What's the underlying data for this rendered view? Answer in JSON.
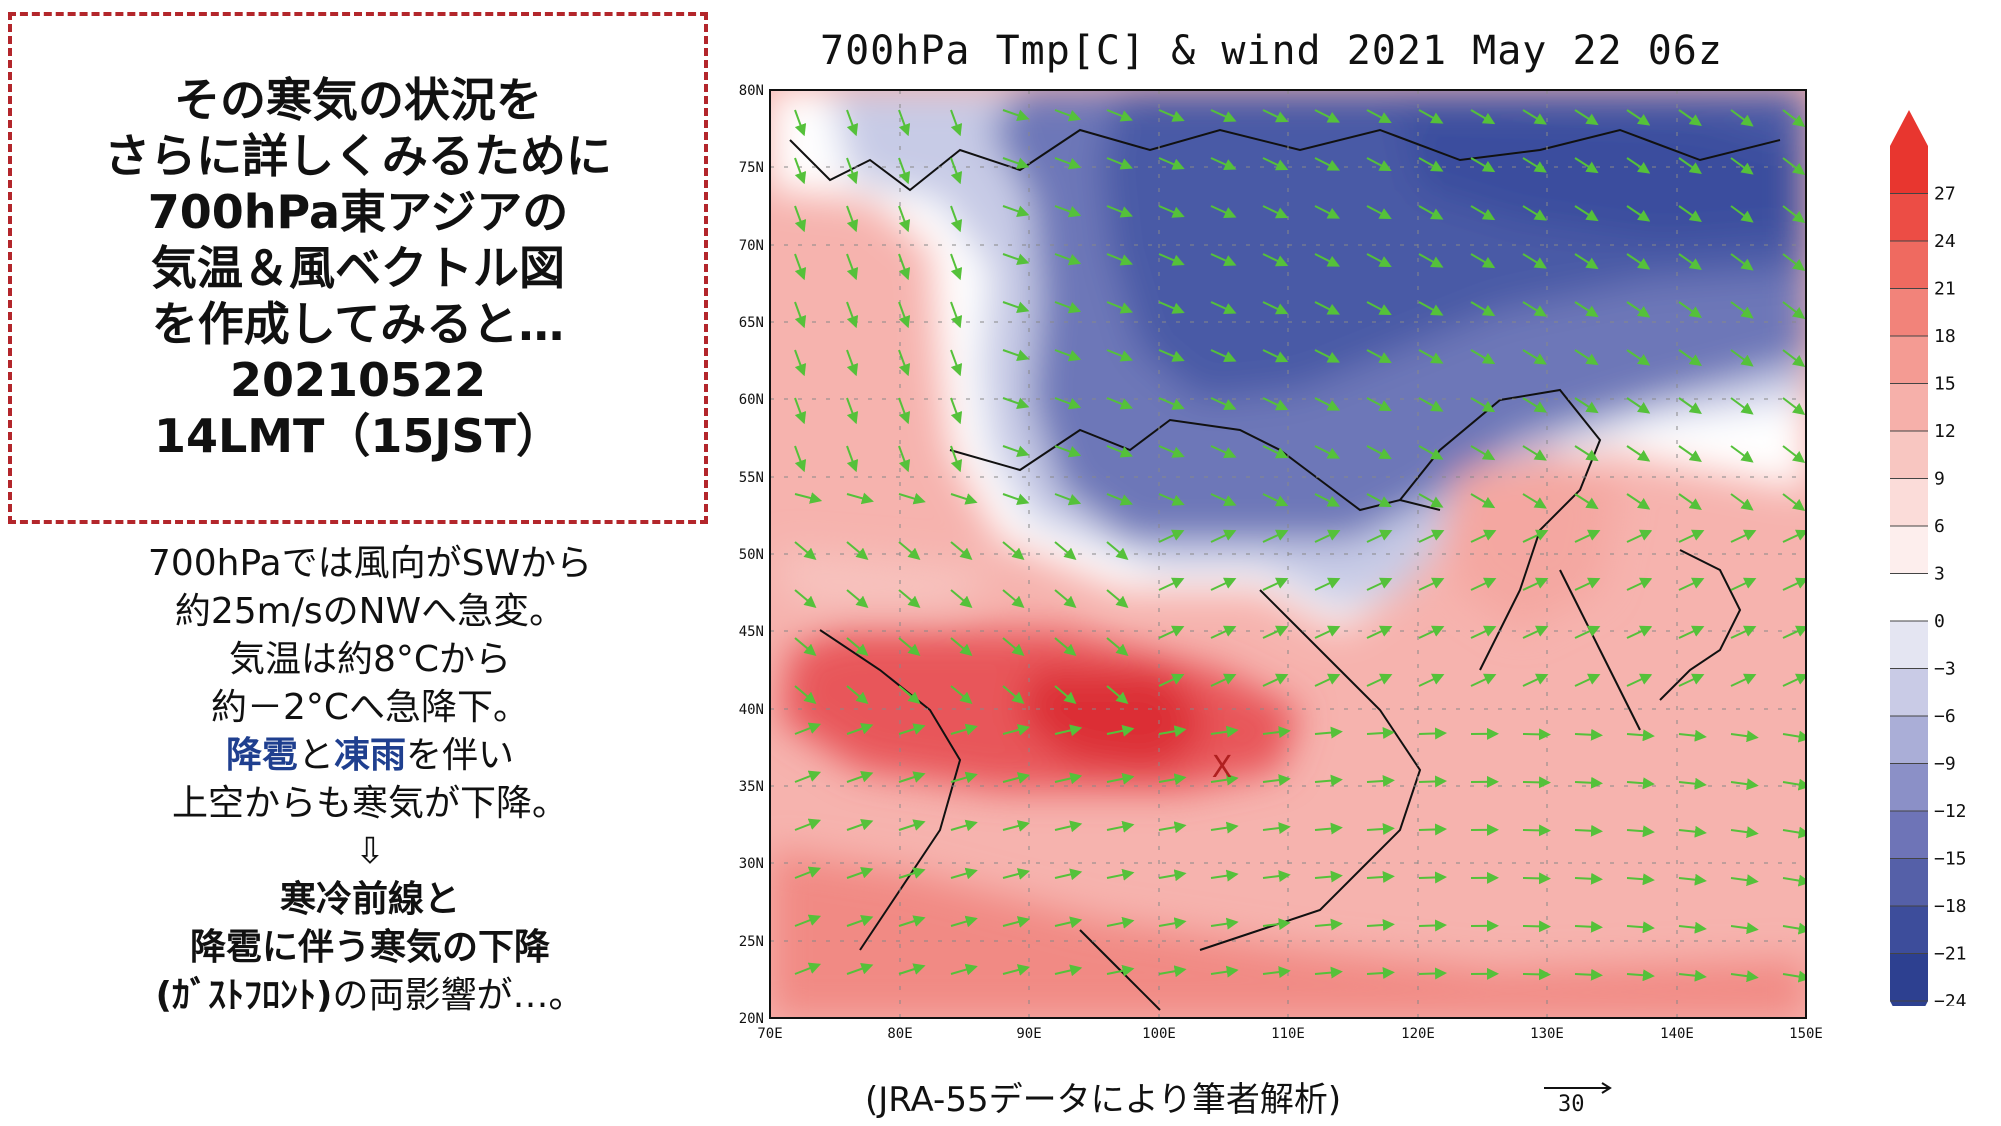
{
  "callout": {
    "lines": [
      "その寒気の状況を",
      "さらに詳しくみるために",
      "700hPa東アジアの",
      "気温＆風ベクトル図",
      "を作成してみると…",
      "20210522",
      "14LMT（15JST）"
    ]
  },
  "notes": {
    "line1": "700hPaでは風向がSWから",
    "line2": "約25m/sのNWへ急変。",
    "line3": "気温は約8°Cから",
    "line4": "約－2°Cへ急降下。",
    "line5_a": "降雹",
    "line5_b": "と",
    "line5_c": "凍雨",
    "line5_d": "を伴い",
    "line6": "上空からも寒気が下降。",
    "arrow": "⇩",
    "line7": "寒冷前線と",
    "line8": "降雹に伴う寒気の下降",
    "line9_a": "(ｶﾞｽﾄﾌﾛﾝﾄ)",
    "line9_b": "の両影響が…。"
  },
  "map": {
    "title": "700hPa Tmp[C] & wind  2021 May 22 06z",
    "lat_labels": [
      "80N",
      "75N",
      "70N",
      "65N",
      "60N",
      "55N",
      "50N",
      "45N",
      "40N",
      "35N",
      "30N",
      "25N",
      "20N"
    ],
    "lon_labels": [
      "70E",
      "80E",
      "90E",
      "100E",
      "110E",
      "120E",
      "130E",
      "140E",
      "150E"
    ],
    "marker": "X",
    "source": "(JRA-55データにより筆者解析)",
    "ref_vector_label": "30"
  },
  "colorbar": {
    "labels": [
      "27",
      "24",
      "21",
      "18",
      "15",
      "12",
      "9",
      "6",
      "3",
      "0",
      "−3",
      "−6",
      "−9",
      "−12",
      "−15",
      "−18",
      "−21",
      "−24"
    ],
    "colors": [
      "#e8362f",
      "#ec4d45",
      "#ef6a60",
      "#f2837a",
      "#f49b93",
      "#f6b0aa",
      "#f8c6c1",
      "#fbdcd9",
      "#fdeeed",
      "#ffffff",
      "#e4e5f2",
      "#c9cbe6",
      "#aaaed7",
      "#8b90c7",
      "#6e74b7",
      "#5560a8",
      "#3d4d9b",
      "#2d4090"
    ]
  },
  "colors": {
    "warm": "#e8565a",
    "cold": "#4a5aa6",
    "wind": "#55c13a",
    "callout_border": "#b3262b",
    "marker": "#b02020"
  }
}
